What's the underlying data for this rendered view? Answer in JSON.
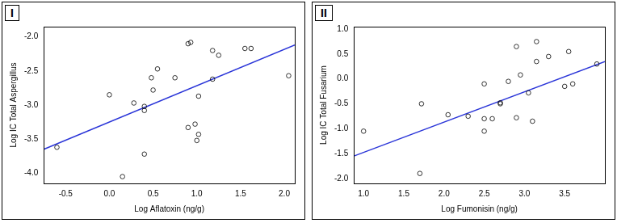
{
  "chart_data": [
    {
      "type": "scatter",
      "title": "I",
      "x_label": "Log Aflatoxin (ng/g)",
      "y_label": "Log IC Total Aspergillus",
      "x": [
        -0.6,
        0.0,
        0.15,
        0.28,
        0.4,
        0.4,
        0.4,
        0.48,
        0.5,
        0.55,
        0.75,
        0.9,
        0.93,
        0.9,
        0.98,
        1.0,
        1.02,
        1.02,
        1.18,
        1.18,
        1.25,
        1.55,
        1.62,
        2.05
      ],
      "values": [
        -3.62,
        -2.85,
        -4.05,
        -2.97,
        -3.02,
        -3.08,
        -3.72,
        -2.6,
        -2.78,
        -2.47,
        -2.6,
        -2.1,
        -2.08,
        -3.33,
        -3.28,
        -3.52,
        -3.43,
        -2.87,
        -2.2,
        -2.62,
        -2.27,
        -2.17,
        -2.17,
        -2.57
      ],
      "marker": "circle_open",
      "color": "#000000",
      "trend_line": {
        "x": [
          -0.75,
          2.12
        ],
        "values": [
          -3.65,
          -2.12
        ],
        "color": "#2a35d8",
        "line_style": "solid"
      },
      "xlim": [
        -0.75,
        2.12
      ],
      "ylim": [
        -4.15,
        -1.85
      ],
      "xticks": [
        -0.5,
        {
          "value": 0,
          "label": "0.0"
        },
        0.5,
        {
          "value": 1,
          "label": "1.0"
        },
        1.5,
        {
          "value": 2,
          "label": "2.0"
        }
      ],
      "yticks": [
        {
          "value": -4,
          "label": "-4.0"
        },
        -3.5,
        {
          "value": -3,
          "label": "-3.0"
        },
        -2.5,
        {
          "value": -2,
          "label": "-2.0"
        }
      ],
      "grid": false
    },
    {
      "type": "scatter",
      "title": "II",
      "x_label": "Log Fumonisin (ng/g)",
      "y_label": "Log IC Total Fusarium",
      "x": [
        1.0,
        1.7,
        1.72,
        2.05,
        2.3,
        2.5,
        2.5,
        2.5,
        2.6,
        2.7,
        2.7,
        2.8,
        2.9,
        2.9,
        2.95,
        3.05,
        3.1,
        3.15,
        3.15,
        3.3,
        3.5,
        3.55,
        3.6,
        3.9
      ],
      "values": [
        -1.05,
        -1.9,
        -0.5,
        -0.72,
        -0.75,
        -0.8,
        -1.05,
        -0.1,
        -0.8,
        -0.5,
        -0.48,
        -0.05,
        -0.78,
        0.65,
        0.08,
        -0.28,
        -0.85,
        0.75,
        0.35,
        0.45,
        -0.15,
        0.55,
        -0.1,
        0.3
      ],
      "marker": "circle_open",
      "color": "#000000",
      "trend_line": {
        "x": [
          0.88,
          4.0
        ],
        "values": [
          -1.55,
          0.35
        ],
        "color": "#2a35d8",
        "line_style": "solid"
      },
      "xlim": [
        0.88,
        4.0
      ],
      "ylim": [
        -2.1,
        1.05
      ],
      "xticks": [
        {
          "value": 1,
          "label": "1.0"
        },
        1.5,
        {
          "value": 2,
          "label": "2.0"
        },
        2.5,
        {
          "value": 3,
          "label": "3.0"
        },
        3.5
      ],
      "yticks": [
        {
          "value": -2,
          "label": "-2.0"
        },
        -1.5,
        {
          "value": -1,
          "label": "-1.0"
        },
        -0.5,
        {
          "value": 0,
          "label": "0.0"
        },
        0.5,
        {
          "value": 1,
          "label": "1.0"
        }
      ],
      "grid": false
    }
  ]
}
